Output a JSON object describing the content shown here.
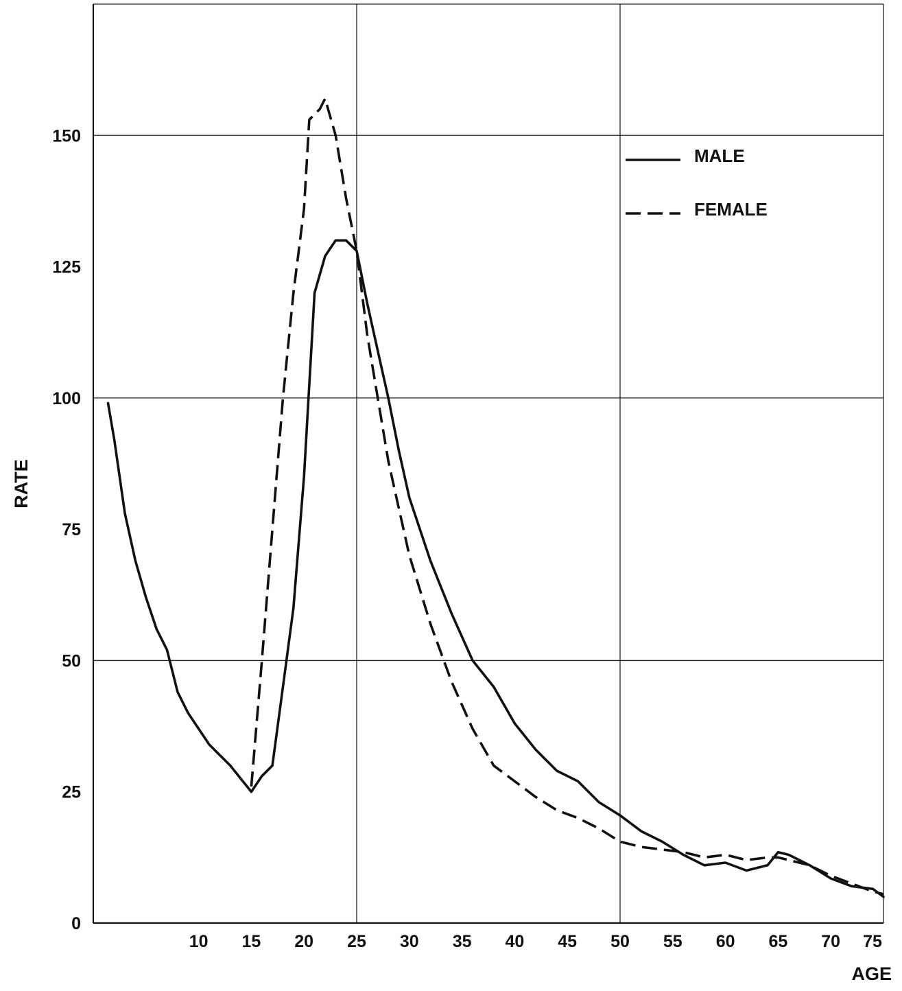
{
  "chart_data": {
    "type": "line",
    "title": "",
    "xlabel": "AGE",
    "ylabel": "RATE",
    "xlim": [
      0,
      75
    ],
    "ylim": [
      0,
      175
    ],
    "grid": true,
    "x_grid": [
      25,
      50,
      75
    ],
    "y_grid": [
      50,
      100,
      150
    ],
    "x_ticks": [
      10,
      15,
      20,
      25,
      30,
      35,
      40,
      45,
      50,
      55,
      60,
      65,
      70,
      75
    ],
    "y_ticks": [
      0,
      25,
      50,
      75,
      100,
      125,
      150
    ],
    "legend_position": "top-right",
    "series": [
      {
        "name": "MALE",
        "style": "solid",
        "color": "#111111",
        "points": [
          [
            1.4,
            99
          ],
          [
            2,
            92
          ],
          [
            3,
            78
          ],
          [
            4,
            69
          ],
          [
            5,
            62
          ],
          [
            6,
            56
          ],
          [
            7,
            52
          ],
          [
            8,
            44
          ],
          [
            9,
            40
          ],
          [
            10,
            37
          ],
          [
            11,
            34
          ],
          [
            12,
            32
          ],
          [
            13,
            30
          ],
          [
            14,
            27.5
          ],
          [
            15,
            25
          ],
          [
            16,
            28
          ],
          [
            17,
            30
          ],
          [
            18,
            45
          ],
          [
            19,
            60
          ],
          [
            20,
            85
          ],
          [
            21,
            120
          ],
          [
            22,
            127
          ],
          [
            23,
            130
          ],
          [
            24,
            130
          ],
          [
            25,
            128
          ],
          [
            26,
            118
          ],
          [
            27,
            109
          ],
          [
            28,
            100
          ],
          [
            29,
            90
          ],
          [
            30,
            81
          ],
          [
            32,
            69
          ],
          [
            34,
            59
          ],
          [
            36,
            50
          ],
          [
            38,
            45
          ],
          [
            40,
            38
          ],
          [
            42,
            33
          ],
          [
            44,
            29
          ],
          [
            46,
            27
          ],
          [
            48,
            23
          ],
          [
            50,
            20.5
          ],
          [
            52,
            17.5
          ],
          [
            54,
            15.5
          ],
          [
            56,
            13
          ],
          [
            58,
            11
          ],
          [
            60,
            11.5
          ],
          [
            62,
            10
          ],
          [
            64,
            11
          ],
          [
            65,
            13.5
          ],
          [
            66,
            13
          ],
          [
            68,
            11
          ],
          [
            70,
            8.5
          ],
          [
            72,
            7
          ],
          [
            74,
            6.5
          ],
          [
            75,
            5
          ]
        ]
      },
      {
        "name": "FEMALE",
        "style": "dashed",
        "color": "#111111",
        "points": [
          [
            15,
            26
          ],
          [
            16,
            50
          ],
          [
            17,
            75
          ],
          [
            18,
            100
          ],
          [
            19,
            120
          ],
          [
            20,
            136
          ],
          [
            20.5,
            153
          ],
          [
            21.5,
            155
          ],
          [
            22,
            157
          ],
          [
            23,
            150
          ],
          [
            24,
            138
          ],
          [
            25,
            128
          ],
          [
            26,
            112
          ],
          [
            27,
            100
          ],
          [
            28,
            88
          ],
          [
            29,
            79
          ],
          [
            30,
            70
          ],
          [
            32,
            57
          ],
          [
            34,
            46
          ],
          [
            36,
            37
          ],
          [
            38,
            30
          ],
          [
            40,
            27
          ],
          [
            42,
            24
          ],
          [
            44,
            21.5
          ],
          [
            46,
            20
          ],
          [
            48,
            18
          ],
          [
            50,
            15.5
          ],
          [
            52,
            14.5
          ],
          [
            54,
            14
          ],
          [
            56,
            13.5
          ],
          [
            58,
            12.5
          ],
          [
            60,
            13
          ],
          [
            62,
            12
          ],
          [
            64,
            12.5
          ],
          [
            65,
            12.5
          ],
          [
            66,
            12
          ],
          [
            68,
            11
          ],
          [
            70,
            9
          ],
          [
            72,
            7.5
          ],
          [
            74,
            6
          ],
          [
            75,
            5.5
          ]
        ]
      }
    ]
  }
}
